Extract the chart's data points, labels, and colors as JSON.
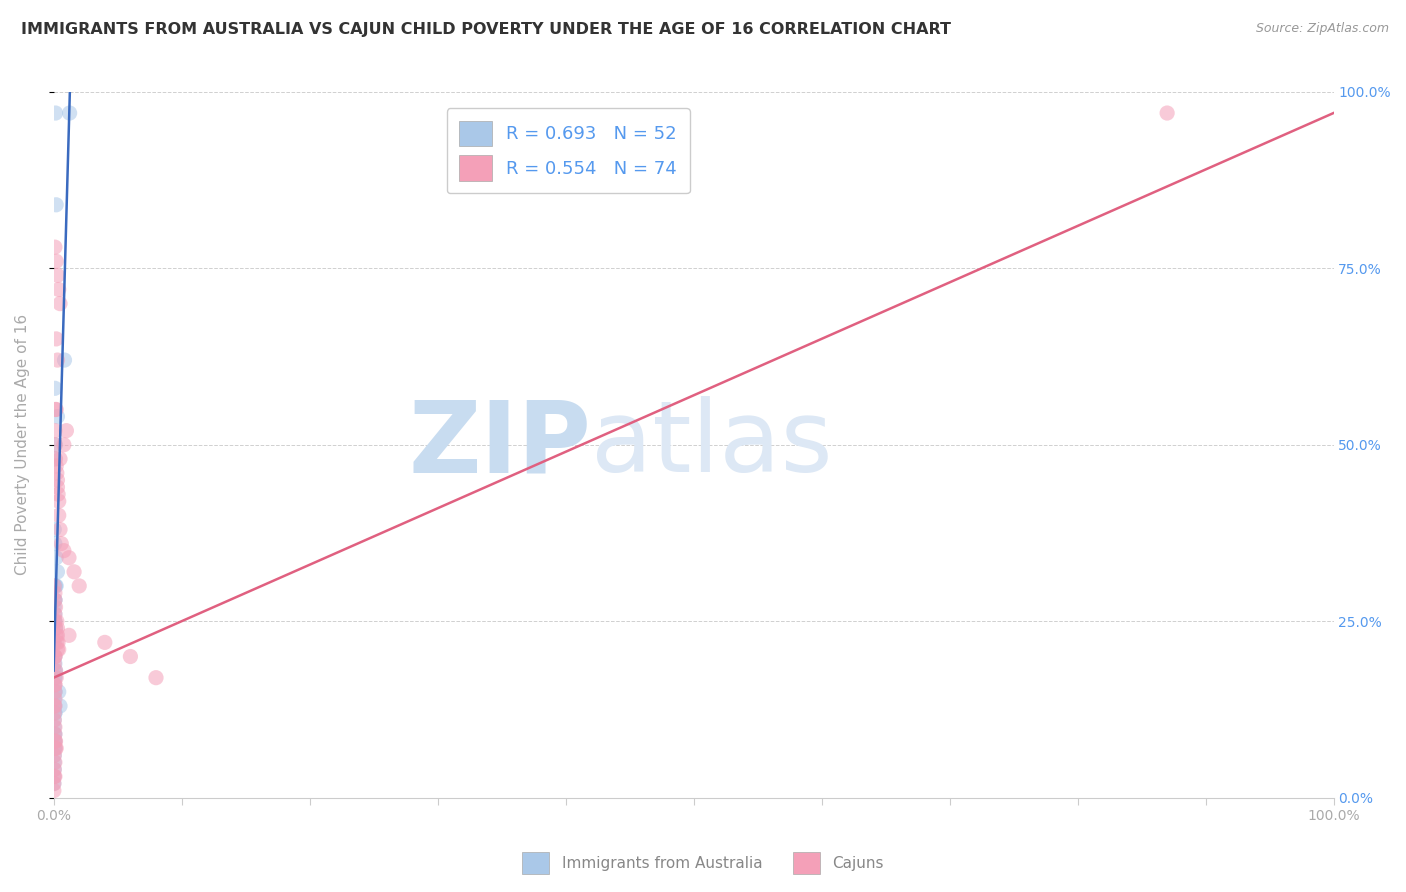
{
  "title": "IMMIGRANTS FROM AUSTRALIA VS CAJUN CHILD POVERTY UNDER THE AGE OF 16 CORRELATION CHART",
  "source": "Source: ZipAtlas.com",
  "ylabel": "Child Poverty Under the Age of 16",
  "xlim": [
    0,
    1
  ],
  "ylim": [
    0,
    1
  ],
  "y_tick_positions": [
    0.0,
    0.25,
    0.5,
    0.75,
    1.0
  ],
  "y_tick_labels_right": [
    "0.0%",
    "25.0%",
    "50.0%",
    "75.0%",
    "100.0%"
  ],
  "watermark_zip": "ZIP",
  "watermark_atlas": "atlas",
  "blue_scatter_x": [
    0.0015,
    0.002,
    0.0125,
    0.0085,
    0.001,
    0.003,
    0.0015,
    0.001,
    0.0005,
    0.001,
    0.002,
    0.003,
    0.001,
    0.0015,
    0.001,
    0.0005,
    0.001,
    0.0005,
    0.001,
    0.0015,
    0.002,
    0.001,
    0.0005,
    0.001,
    0.001,
    0.0005,
    0.0015,
    0.001,
    0.001,
    0.0005,
    0.001,
    0.001,
    0.0005,
    0.0005,
    0.001,
    0.001,
    0.001,
    0.0005,
    0.0005,
    0.0005,
    0.001,
    0.0005,
    0.001,
    0.0005,
    0.001,
    0.0005,
    0.0005,
    0.0005,
    0.0002,
    0.0002,
    0.004,
    0.005
  ],
  "blue_scatter_y": [
    0.97,
    0.84,
    0.97,
    0.62,
    0.58,
    0.54,
    0.5,
    0.48,
    0.38,
    0.36,
    0.34,
    0.32,
    0.3,
    0.3,
    0.28,
    0.27,
    0.26,
    0.25,
    0.25,
    0.24,
    0.3,
    0.28,
    0.22,
    0.2,
    0.19,
    0.18,
    0.18,
    0.17,
    0.17,
    0.16,
    0.15,
    0.15,
    0.14,
    0.13,
    0.13,
    0.12,
    0.12,
    0.11,
    0.1,
    0.09,
    0.09,
    0.08,
    0.08,
    0.07,
    0.07,
    0.06,
    0.05,
    0.04,
    0.03,
    0.02,
    0.15,
    0.13
  ],
  "pink_scatter_x": [
    0.001,
    0.002,
    0.003,
    0.004,
    0.005,
    0.002,
    0.003,
    0.0015,
    0.001,
    0.001,
    0.0015,
    0.002,
    0.0025,
    0.003,
    0.003,
    0.0035,
    0.004,
    0.004,
    0.005,
    0.006,
    0.008,
    0.012,
    0.016,
    0.02,
    0.04,
    0.06,
    0.08,
    0.0005,
    0.001,
    0.001,
    0.0015,
    0.001,
    0.001,
    0.0015,
    0.002,
    0.0025,
    0.003,
    0.001,
    0.001,
    0.0005,
    0.0015,
    0.002,
    0.001,
    0.001,
    0.001,
    0.001,
    0.0005,
    0.001,
    0.0005,
    0.0005,
    0.001,
    0.001,
    0.0015,
    0.002,
    0.0005,
    0.001,
    0.0005,
    0.0005,
    0.0002,
    0.0002,
    0.0025,
    0.003,
    0.003,
    0.0035,
    0.004,
    0.005,
    0.008,
    0.01,
    0.012,
    0.002,
    0.0015,
    0.001,
    0.87,
    0.001
  ],
  "pink_scatter_y": [
    0.78,
    0.76,
    0.74,
    0.72,
    0.7,
    0.65,
    0.62,
    0.55,
    0.52,
    0.5,
    0.48,
    0.47,
    0.46,
    0.45,
    0.44,
    0.43,
    0.42,
    0.4,
    0.38,
    0.36,
    0.35,
    0.34,
    0.32,
    0.3,
    0.22,
    0.2,
    0.17,
    0.3,
    0.29,
    0.28,
    0.27,
    0.26,
    0.25,
    0.24,
    0.23,
    0.22,
    0.21,
    0.2,
    0.2,
    0.19,
    0.18,
    0.17,
    0.16,
    0.16,
    0.15,
    0.14,
    0.13,
    0.13,
    0.12,
    0.11,
    0.1,
    0.09,
    0.08,
    0.07,
    0.06,
    0.05,
    0.04,
    0.03,
    0.02,
    0.01,
    0.25,
    0.24,
    0.23,
    0.22,
    0.21,
    0.48,
    0.5,
    0.52,
    0.23,
    0.55,
    0.07,
    0.03,
    0.97,
    0.08
  ],
  "blue_line_x": [
    0.0,
    0.013
  ],
  "blue_line_y": [
    0.18,
    1.02
  ],
  "pink_line_x": [
    0.0,
    1.0
  ],
  "pink_line_y": [
    0.17,
    0.97
  ],
  "grid_color": "#d0d0d0",
  "blue_color": "#aac8e8",
  "pink_color": "#f4a0b8",
  "blue_line_color": "#3a6abf",
  "pink_line_color": "#e06080",
  "title_color": "#333333",
  "title_fontsize": 11.5,
  "axis_label_color": "#aaaaaa",
  "right_tick_color": "#5599ee",
  "watermark_zip_color": "#c8dcf0",
  "watermark_atlas_color": "#dde8f5",
  "scatter_size": 120,
  "scatter_alpha": 0.55,
  "legend_blue_r": "R = 0.693",
  "legend_blue_n": "N = 52",
  "legend_pink_r": "R = 0.554",
  "legend_pink_n": "N = 74",
  "bottom_label_blue": "Immigrants from Australia",
  "bottom_label_pink": "Cajuns"
}
